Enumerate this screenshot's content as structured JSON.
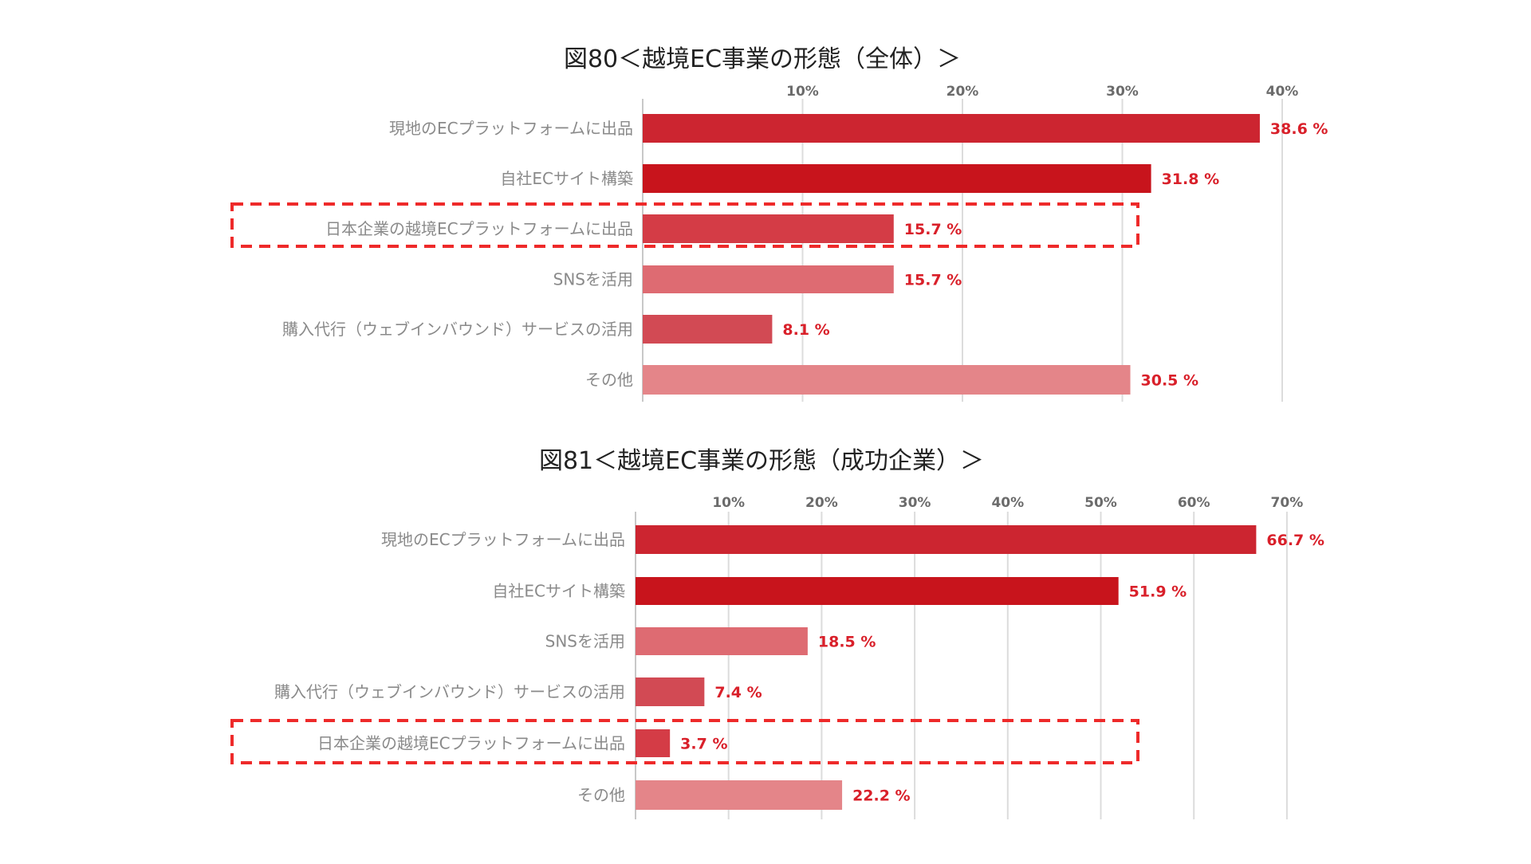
{
  "chart_data": [
    {
      "type": "bar",
      "orientation": "horizontal",
      "title": "図80＜越境EC事業の形態（全体）＞",
      "x_ticks": [
        "10%",
        "20%",
        "30%",
        "40%"
      ],
      "xlim": [
        0,
        40
      ],
      "grid": true,
      "categories": [
        "現地のECプラットフォームに出品",
        "自社ECサイト構築",
        "日本企業の越境ECプラットフォームに出品",
        "SNSを活用",
        "購入代行（ウェブインバウンド）サービスの活用",
        "その他"
      ],
      "values": [
        38.6,
        31.8,
        15.7,
        15.7,
        8.1,
        30.5
      ],
      "value_labels": [
        "38.6 %",
        "31.8 %",
        "15.7 %",
        "15.7 %",
        "8.1 %",
        "30.5 %"
      ],
      "bar_colors": [
        "#cc2530",
        "#c8141c",
        "#d43c46",
        "#de6b72",
        "#d24a54",
        "#e48589"
      ],
      "highlighted_category": "日本企業の越境ECプラットフォームに出品"
    },
    {
      "type": "bar",
      "orientation": "horizontal",
      "title": "図81＜越境EC事業の形態（成功企業）＞",
      "x_ticks": [
        "10%",
        "20%",
        "30%",
        "40%",
        "50%",
        "60%",
        "70%"
      ],
      "xlim": [
        0,
        70
      ],
      "grid": true,
      "categories": [
        "現地のECプラットフォームに出品",
        "自社ECサイト構築",
        "SNSを活用",
        "購入代行（ウェブインバウンド）サービスの活用",
        "日本企業の越境ECプラットフォームに出品",
        "その他"
      ],
      "values": [
        66.7,
        51.9,
        18.5,
        7.4,
        3.7,
        22.2
      ],
      "value_labels": [
        "66.7 %",
        "51.9 %",
        "18.5 %",
        "7.4 %",
        "3.7 %",
        "22.2 %"
      ],
      "bar_colors": [
        "#cc2530",
        "#c8141c",
        "#de6b72",
        "#d24a54",
        "#d43c46",
        "#e48589"
      ],
      "highlighted_category": "日本企業の越境ECプラットフォームに出品"
    }
  ]
}
